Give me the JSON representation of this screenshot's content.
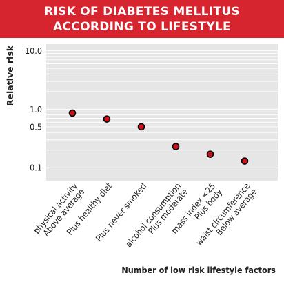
{
  "header": {
    "title_line1": "RISK OF DIABETES MELLITUS",
    "title_line2": "ACCORDING TO LIFESTYLE"
  },
  "colors": {
    "header_bg": "#d6252e",
    "header_text": "#ffffff",
    "plot_bg": "#e6e6e6",
    "grid": "#ffffff",
    "marker_fill": "#c8121c",
    "marker_edge": "#000000",
    "text": "#222222"
  },
  "chart_data": {
    "type": "scatter",
    "title": "RISK OF DIABETES MELLITUS ACCORDING TO LIFESTYLE",
    "xlabel": "Number of low risk lifestyle factors",
    "ylabel": "Relative risk",
    "y_scale": "log",
    "ylim": [
      0.06,
      13
    ],
    "y_ticks": [
      {
        "value": 10,
        "label": "10.0"
      },
      {
        "value": 1,
        "label": "1.0"
      },
      {
        "value": 0.5,
        "label": "0.5"
      },
      {
        "value": 0.1,
        "label": "0.1"
      }
    ],
    "grid": true,
    "categories": [
      [
        "Above average",
        "physical activity"
      ],
      [
        "Plus healthy diet"
      ],
      [
        "Plus never smoked"
      ],
      [
        "Plus moderate",
        "alcohol consumption"
      ],
      [
        "Plus body",
        "mass index <25"
      ],
      [
        "Below average",
        "waist circumference"
      ]
    ],
    "values": [
      0.86,
      0.68,
      0.5,
      0.23,
      0.17,
      0.13
    ]
  }
}
